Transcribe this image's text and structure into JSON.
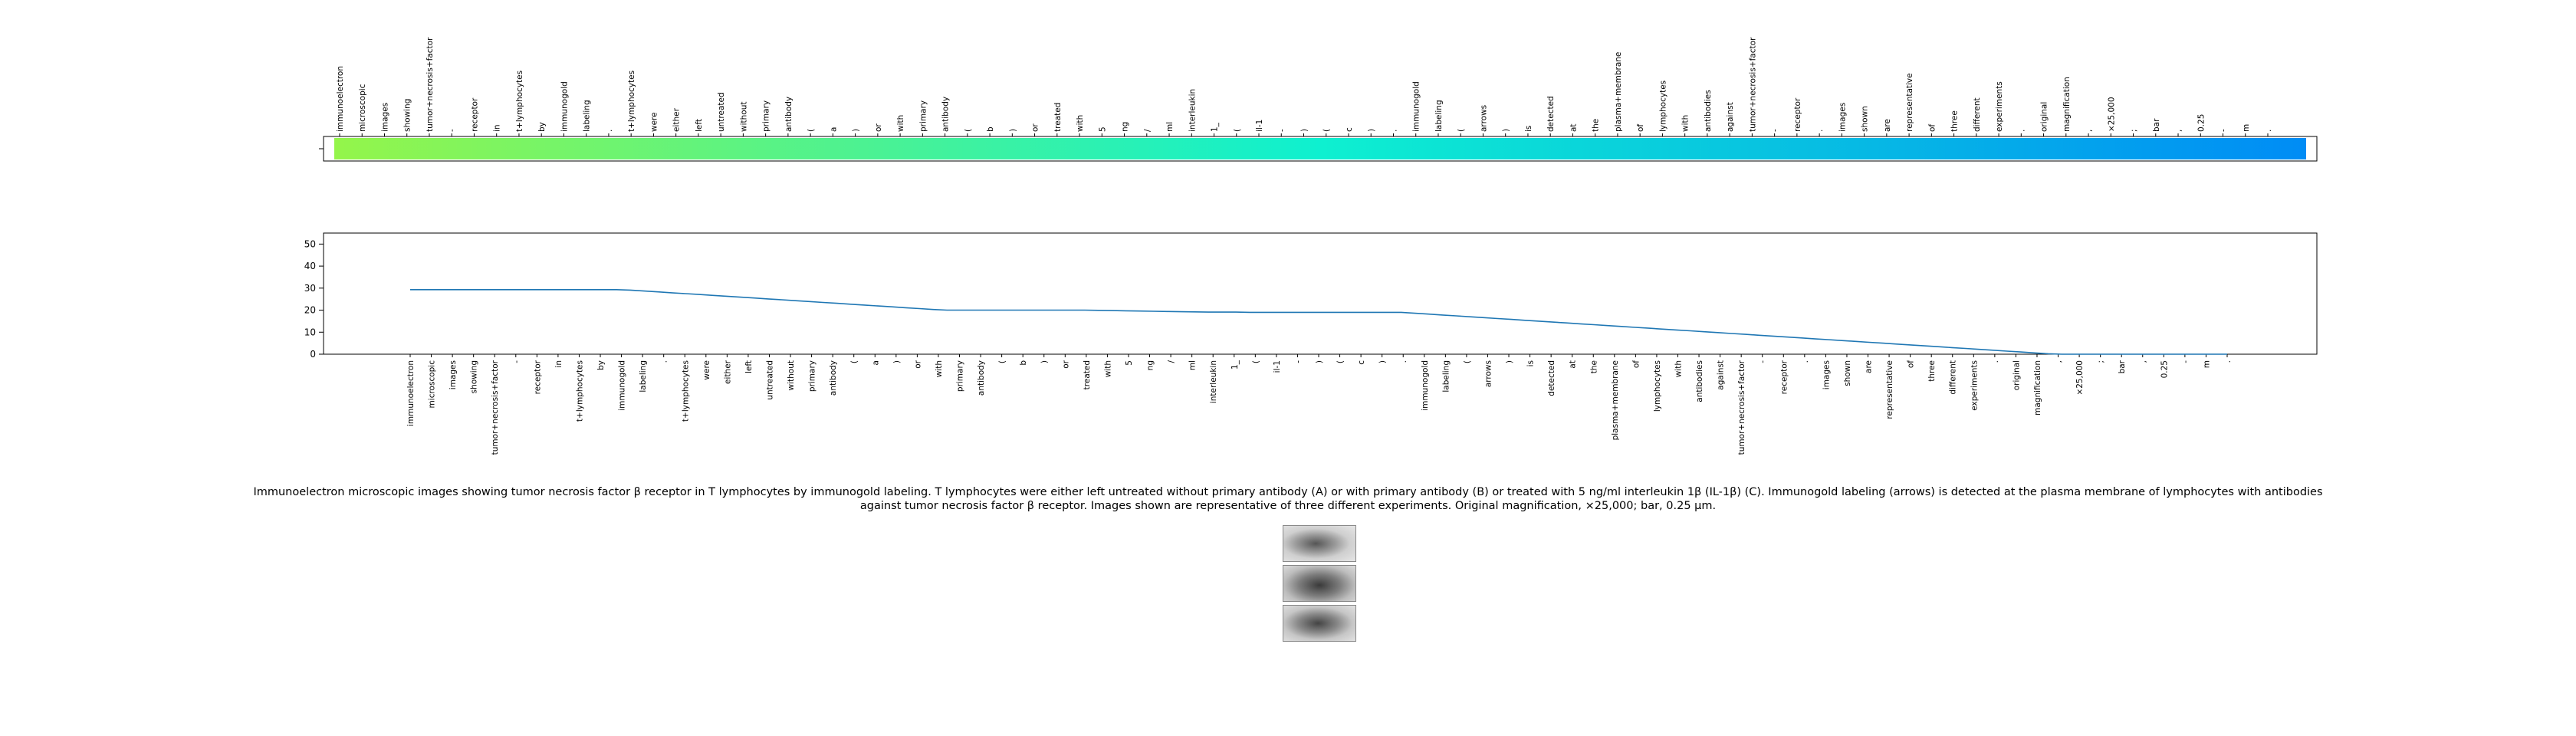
{
  "chart_data": {
    "type": "line",
    "tokens": [
      "immunoelectron",
      "microscopic",
      "images",
      "showing",
      "tumor+necrosis+factor",
      "-",
      "receptor",
      "in",
      "t+lymphocytes",
      "by",
      "immunogold",
      "labeling",
      ".",
      "t+lymphocytes",
      "were",
      "either",
      "left",
      "untreated",
      "without",
      "primary",
      "antibody",
      "(",
      "a",
      ")",
      "or",
      "with",
      "primary",
      "antibody",
      "(",
      "b",
      ")",
      "or",
      "treated",
      "with",
      "5",
      "ng",
      "/",
      "ml",
      "interleukin",
      "1_",
      "(",
      "il-1",
      "-",
      ")",
      "(",
      "c",
      ")",
      ".",
      "immunogold",
      "labeling",
      "(",
      "arrows",
      ")",
      "is",
      "detected",
      "at",
      "the",
      "plasma+membrane",
      "of",
      "lymphocytes",
      "with",
      "antibodies",
      "against",
      "tumor+necrosis+factor",
      "-",
      "receptor",
      ".",
      "images",
      "shown",
      "are",
      "representative",
      "of",
      "three",
      "different",
      "experiments",
      ".",
      "original",
      "magnification",
      ",",
      "×25,000",
      ";",
      "bar",
      ",",
      "0.25",
      "-",
      "m",
      "."
    ],
    "values": [
      29.3,
      29.3,
      29.3,
      29.3,
      29.3,
      29.3,
      29.3,
      29.3,
      29.3,
      29.3,
      29.3,
      29.3,
      29.3,
      29.3,
      29.3,
      29.3,
      29.1,
      28.7,
      28.3,
      27.9,
      27.5,
      27.1,
      26.7,
      26.3,
      25.9,
      25.5,
      25.1,
      24.7,
      24.3,
      23.9,
      23.5,
      23.1,
      22.7,
      22.3,
      21.9,
      21.5,
      21.1,
      20.7,
      20.3,
      20.0,
      20.0,
      20.0,
      20.0,
      20.0,
      20.0,
      20.0,
      20.0,
      20.0,
      20.0,
      20.0,
      19.9,
      19.8,
      19.7,
      19.6,
      19.5,
      19.4,
      19.3,
      19.2,
      19.1,
      19.1,
      19.1,
      19.0,
      19.0,
      19.0,
      19.0,
      19.0,
      19.0,
      19.0,
      19.0,
      19.0,
      19.0,
      19.0,
      19.0,
      18.6,
      18.2,
      17.8,
      17.4,
      17.0,
      16.6,
      16.2,
      15.8,
      15.4,
      15.0,
      14.6,
      14.2,
      13.8,
      13.4,
      13.0,
      12.6,
      12.2,
      11.8,
      11.4,
      11.0,
      10.6,
      10.2,
      9.8,
      9.4,
      9.0,
      8.6,
      8.2,
      7.8,
      7.4,
      7.0,
      6.6,
      6.2,
      5.8,
      5.4,
      5.0,
      4.6,
      4.2,
      3.8,
      3.4,
      3.0,
      2.6,
      2.2,
      1.8,
      1.4,
      1.0,
      0.6,
      0.2,
      -0.2,
      -0.6,
      -1.0,
      -1.4,
      -1.8,
      -2.2,
      -2.6,
      -3.0,
      -3.4,
      -3.8,
      -4.2,
      -4.6,
      -5.0
    ],
    "ylim": [
      0,
      55
    ],
    "yticks": [
      0,
      10,
      20,
      30,
      40,
      50
    ],
    "line_color": "#1f77b4",
    "colorbar_start": "#94f54a",
    "colorbar_end": "#008cf5"
  },
  "caption": "Immunoelectron microscopic images showing tumor necrosis factor β receptor in T lymphocytes by immunogold labeling. T lymphocytes were either left untreated without primary antibody (A) or with primary antibody (B) or treated with 5 ng/ml interleukin 1β (IL-1β) (C). Immunogold labeling (arrows) is detected at the plasma membrane of lymphocytes with antibodies against tumor necrosis factor β receptor. Images shown are representative of three different experiments. Original magnification, ×25,000; bar, 0.25 μm."
}
